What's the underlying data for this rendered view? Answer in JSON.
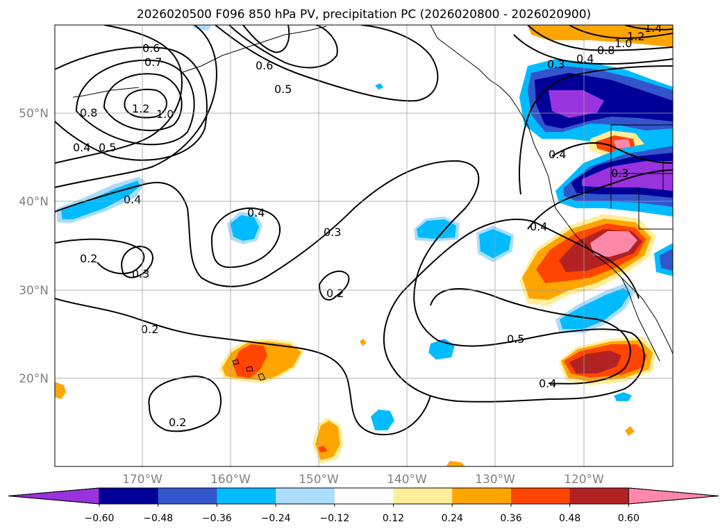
{
  "title": "2026020500 F096 850 hPa PV, precipitation PC (2026020800 - 2026020900)",
  "map": {
    "lon_labels": [
      "170°W",
      "160°W",
      "150°W",
      "140°W",
      "130°W",
      "120°W"
    ],
    "lat_labels": [
      "50°N",
      "40°N",
      "30°N",
      "20°N"
    ],
    "contour_labels": [
      "0.6",
      "0.7",
      "0.8",
      "1.2",
      "1.0",
      "0.4",
      "0.5",
      "0.4",
      "0.2",
      "0.3",
      "0.2",
      "0.2",
      "0.6",
      "0.5",
      "0.4",
      "0.3",
      "0.2",
      "0.5",
      "0.4",
      "0.3",
      "0.4",
      "0.4",
      "0.3",
      "0.4",
      "0.8",
      "1.0",
      "1.2",
      "1.4"
    ],
    "coastline_color": "#000000",
    "contour_color": "#000000"
  },
  "colorbar": {
    "colors": [
      "#9933dd",
      "#000099",
      "#3355cc",
      "#00bbff",
      "#aaddff",
      "#ffffff",
      "#ffee99",
      "#ffa500",
      "#ff4500",
      "#b22222",
      "#ff88aa"
    ],
    "tick_labels": [
      "−0.60",
      "−0.48",
      "−0.36",
      "−0.24",
      "−0.12",
      "0.12",
      "0.24",
      "0.36",
      "0.48",
      "0.60"
    ]
  }
}
